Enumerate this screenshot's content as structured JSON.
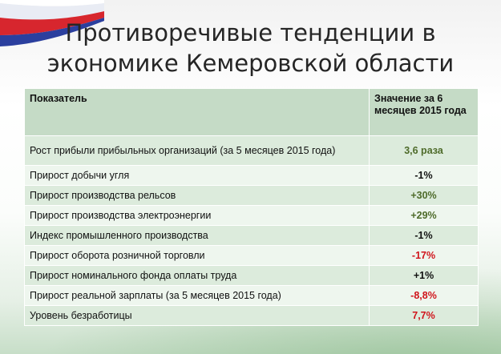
{
  "title": {
    "line1": "Противоречивые тенденции в",
    "line2": "экономике Кемеровской области"
  },
  "table": {
    "headers": {
      "indicator": "Показатель",
      "value": "Значение за 6 месяцев 2015 года"
    },
    "rows": [
      {
        "label": "Рост прибыли прибыльных организаций (за 5 месяцев 2015 года)",
        "value": "3,6 раза",
        "tone": "green"
      },
      {
        "label": "Прирост добычи угля",
        "value": "-1%",
        "tone": "black"
      },
      {
        "label": "Прирост производства рельсов",
        "value": "+30%",
        "tone": "green"
      },
      {
        "label": "Прирост производства электроэнергии",
        "value": "+29%",
        "tone": "green"
      },
      {
        "label": "Индекс промышленного производства",
        "value": "-1%",
        "tone": "black"
      },
      {
        "label": "Прирост оборота розничной торговли",
        "value": "-17%",
        "tone": "red"
      },
      {
        "label": "Прирост номинального фонда оплаты труда",
        "value": "+1%",
        "tone": "black"
      },
      {
        "label": "Прирост реальной зарплаты (за 5 месяцев 2015 года)",
        "value": "-8,8%",
        "tone": "red"
      },
      {
        "label": "Уровень безработицы",
        "value": "7,7%",
        "tone": "red"
      }
    ]
  },
  "colors": {
    "green": "#4e6b2a",
    "red": "#d0141b",
    "black": "#111111",
    "header_bg": "#c5dbc6",
    "row_odd_bg": "#dcebdc",
    "row_even_bg": "#eef6ee"
  }
}
